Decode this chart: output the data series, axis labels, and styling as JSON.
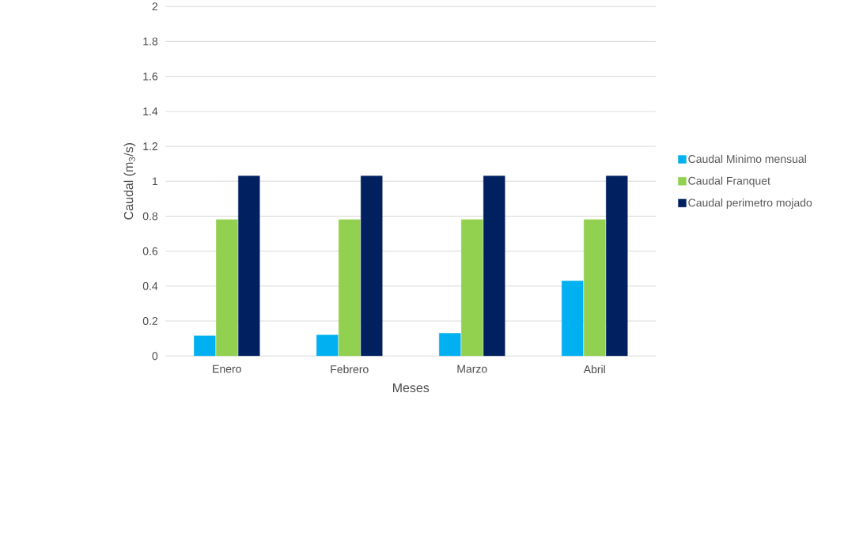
{
  "chart_data": {
    "type": "bar",
    "xlabel": "Meses",
    "ylabel": "Caudal (m$_{3}$/s)",
    "categories": [
      "Enero",
      "Febrero",
      "Marzo",
      "Abril"
    ],
    "series": [
      {
        "name": "Caudal Minimo mensual",
        "color": "#00b0f0",
        "values": [
          0.115,
          0.12,
          0.13,
          0.43
        ]
      },
      {
        "name": "Caudal Franquet",
        "color": "#92d050",
        "values": [
          0.78,
          0.78,
          0.78,
          0.78
        ]
      },
      {
        "name": "Caudal perimetro mojado",
        "color": "#002060",
        "values": [
          1.03,
          1.03,
          1.03,
          1.03
        ]
      }
    ],
    "ylim": [
      0,
      2
    ],
    "yticks": [
      0,
      0.2,
      0.4,
      0.6,
      0.8,
      1,
      1.2,
      1.4,
      1.6,
      1.8,
      2
    ],
    "grid": "y",
    "legend": "right"
  }
}
